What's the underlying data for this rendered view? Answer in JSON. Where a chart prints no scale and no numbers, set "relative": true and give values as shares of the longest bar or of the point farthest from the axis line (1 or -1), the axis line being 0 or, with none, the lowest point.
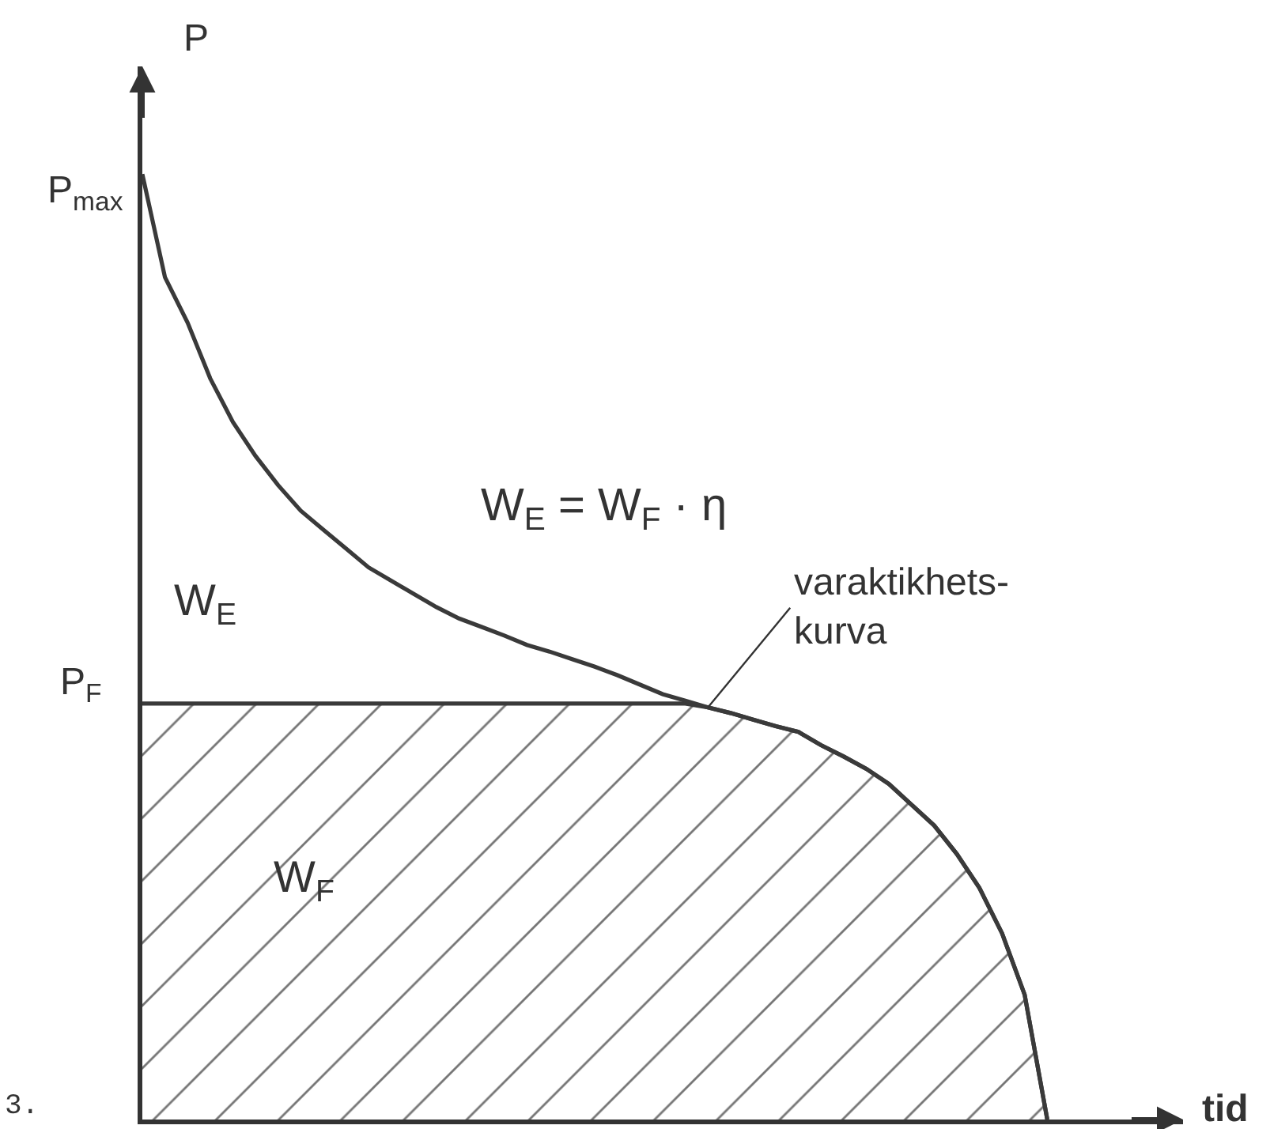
{
  "chart_data": {
    "type": "line",
    "relative": true,
    "xlabel": "tid",
    "ylabel": "P",
    "categories": [
      null,
      null,
      null,
      null,
      null,
      null,
      null,
      null,
      null,
      null,
      null,
      null,
      null,
      null,
      null,
      null,
      null,
      null,
      null,
      null,
      null,
      null,
      null,
      null,
      null,
      null,
      null,
      null,
      null,
      null,
      null,
      null,
      null,
      null,
      null,
      null,
      null,
      null,
      null,
      null,
      null,
      null,
      null,
      null,
      null,
      null,
      null
    ],
    "series": [
      {
        "type": "area",
        "color": "#3a3a3a",
        "values": [
          0.44,
          0.44,
          0.44,
          0.44,
          0.44,
          0.44,
          0.44,
          0.44,
          0.44,
          0.44,
          0.44,
          0.44,
          0.44,
          0.44,
          0.44,
          0.44,
          0.44,
          0.44,
          0.44,
          0.44,
          0.44,
          0.44,
          0.44,
          0.44,
          0.44,
          0.436,
          0.43,
          0.423,
          0.416,
          0.41,
          0.396,
          0.384,
          0.371,
          0.355,
          0.333,
          0.311,
          0.281,
          0.245,
          0.197,
          0.132,
          0.0,
          null,
          null,
          null,
          null,
          null,
          null
        ]
      },
      {
        "color": "#3a3a3a",
        "values": [
          1.0,
          0.891,
          0.843,
          0.784,
          0.738,
          0.702,
          0.671,
          0.644,
          0.624,
          0.604,
          0.584,
          0.57,
          0.556,
          0.542,
          0.53,
          0.521,
          0.512,
          0.502,
          0.495,
          0.487,
          0.479,
          0.47,
          0.46,
          0.45,
          0.443,
          0.436,
          0.43,
          0.423,
          0.416,
          0.41,
          0.396,
          0.384,
          0.371,
          0.355,
          0.333,
          0.311,
          0.281,
          0.245,
          0.197,
          0.132,
          0.0,
          null,
          null,
          null,
          null,
          null,
          null
        ]
      }
    ],
    "annotations": [
      "P$_{max}$",
      "P$_{F}$",
      "W$_{E}$ = W$_{F}$ · η",
      "W$_{E}$",
      "W$_{F}$",
      "varaktikhets-\nkurva",
      "3."
    ]
  }
}
